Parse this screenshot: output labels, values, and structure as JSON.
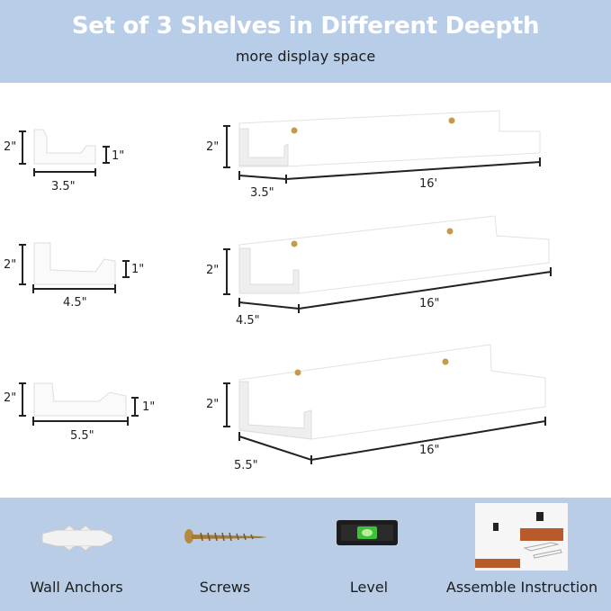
{
  "header": {
    "title": "Set of 3 Shelves in Different Deepth",
    "subtitle": "more display space"
  },
  "shelves": [
    {
      "height": "2\"",
      "lip": "1\"",
      "depth": "3.5\"",
      "length": "16'"
    },
    {
      "height": "2\"",
      "lip": "1\"",
      "depth": "4.5\"",
      "length": "16\""
    },
    {
      "height": "2\"",
      "lip": "1\"",
      "depth": "5.5\"",
      "length": "16\""
    }
  ],
  "accessories": [
    {
      "label": "Wall Anchors",
      "icon": "wall-anchor-icon"
    },
    {
      "label": "Screws",
      "icon": "screw-icon"
    },
    {
      "label": "Level",
      "icon": "level-icon"
    },
    {
      "label": "Assemble Instruction",
      "icon": "instruction-manual-icon"
    }
  ],
  "colors": {
    "header_bg": "#b8cde7",
    "footer_bg": "#b9cde6",
    "manual_accent": "#b85a2a",
    "level_bubble": "#3fbf3a"
  }
}
